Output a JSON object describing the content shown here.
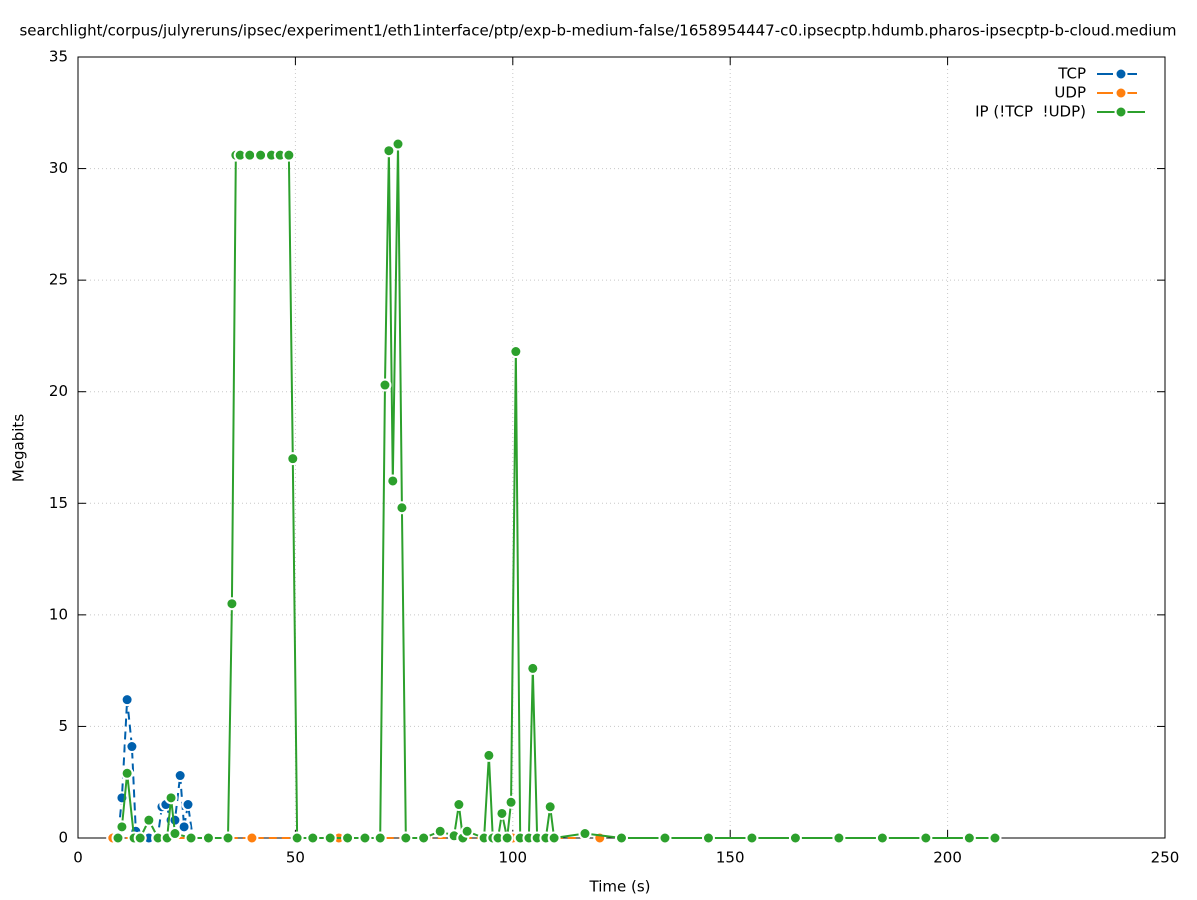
{
  "chart_data": {
    "type": "line",
    "title": "searchlight/corpus/julyreruns/ipsec/experiment1/eth1interface/ptp/exp-b-medium-false/1658954447-c0.ipsecptp.hdumb.pharos-ipsecptp-b-cloud.medium",
    "xlabel": "Time (s)",
    "ylabel": "Megabits",
    "xlim": [
      0,
      250
    ],
    "xticks": [
      0,
      50,
      100,
      150,
      200,
      250
    ],
    "ylim": [
      0,
      35
    ],
    "yticks": [
      0,
      5,
      10,
      15,
      20,
      25,
      30,
      35
    ],
    "grid": true,
    "legend": "top-right",
    "series": [
      {
        "name": "TCP",
        "color": "#0060ad",
        "dash": true,
        "x": [
          8.0,
          9.2,
          10.1,
          11.3,
          12.4,
          13.3,
          14.3,
          16.3,
          18.3,
          19.3,
          20.2,
          21.4,
          22.3,
          23.5,
          24.4,
          25.3,
          26.4
        ],
        "values": [
          0,
          0,
          1.8,
          6.2,
          4.1,
          0.3,
          0,
          0,
          0,
          1.4,
          1.5,
          0.8,
          0.8,
          2.8,
          0.5,
          1.5,
          0
        ]
      },
      {
        "name": "UDP",
        "color": "#ff7f0e",
        "dash": true,
        "x": [
          8.0,
          20.0,
          40.0,
          60.0,
          80.0,
          100.0,
          120.0
        ],
        "values": [
          0,
          0,
          0,
          0,
          0,
          0,
          0
        ]
      },
      {
        "name": "IP (!TCP  !UDP)",
        "color": "#2ca02c",
        "dash": false,
        "x": [
          9.2,
          10.1,
          11.3,
          12.9,
          14.3,
          16.3,
          18.4,
          20.5,
          21.4,
          22.3,
          26.0,
          30.0,
          34.5,
          35.4,
          36.3,
          37.3,
          39.5,
          42.0,
          44.5,
          46.5,
          48.5,
          49.4,
          50.4,
          54.0,
          58.0,
          62.0,
          66.0,
          69.5,
          70.6,
          71.5,
          72.4,
          73.6,
          74.5,
          75.4,
          79.5,
          83.3,
          86.5,
          87.6,
          88.5,
          89.5,
          93.4,
          94.5,
          95.4,
          96.6,
          97.5,
          98.7,
          99.6,
          100.7,
          101.7,
          103.7,
          104.6,
          105.6,
          107.6,
          108.6,
          109.5,
          116.6,
          125.0,
          135.0,
          145.0,
          155.0,
          165.0,
          175.0,
          185.0,
          195.0,
          205.0,
          210.9
        ],
        "values": [
          0,
          0.5,
          2.9,
          0,
          0,
          0.8,
          0,
          0,
          1.8,
          0.2,
          0,
          0,
          0,
          10.5,
          30.6,
          30.6,
          30.6,
          30.6,
          30.6,
          30.6,
          30.6,
          17.0,
          0,
          0,
          0,
          0,
          0,
          0,
          20.3,
          30.8,
          16.0,
          31.1,
          14.8,
          0,
          0,
          0.3,
          0.1,
          1.5,
          0,
          0.3,
          0,
          3.7,
          0,
          0,
          1.1,
          0,
          1.6,
          21.8,
          0,
          0,
          7.6,
          0,
          0,
          1.4,
          0,
          0.2,
          0,
          0,
          0,
          0,
          0,
          0,
          0,
          0,
          0,
          0
        ]
      }
    ]
  }
}
